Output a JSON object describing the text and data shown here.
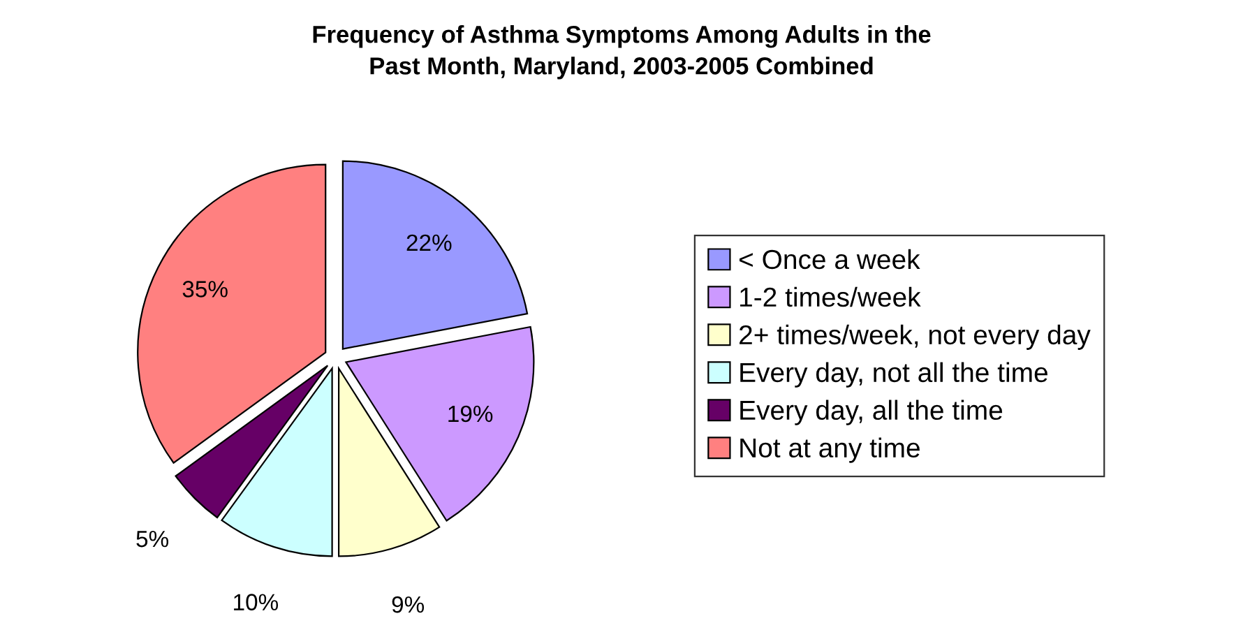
{
  "chart_data": {
    "type": "pie",
    "title": "Frequency of Asthma Symptoms Among Adults in the\nPast Month, Maryland, 2003-2005 Combined",
    "categories": [
      "< Once a week",
      "1-2 times/week",
      "2+ times/week, not every day",
      "Every day, not all the time",
      "Every day, all the time",
      "Not at any time"
    ],
    "values": [
      22,
      19,
      9,
      10,
      5,
      35
    ],
    "value_labels": [
      "22%",
      "19%",
      "9%",
      "10%",
      "5%",
      "35%"
    ],
    "colors": [
      "#9999ff",
      "#cc99ff",
      "#ffffcc",
      "#ccffff",
      "#660066",
      "#ff8080"
    ],
    "legend": "right"
  }
}
